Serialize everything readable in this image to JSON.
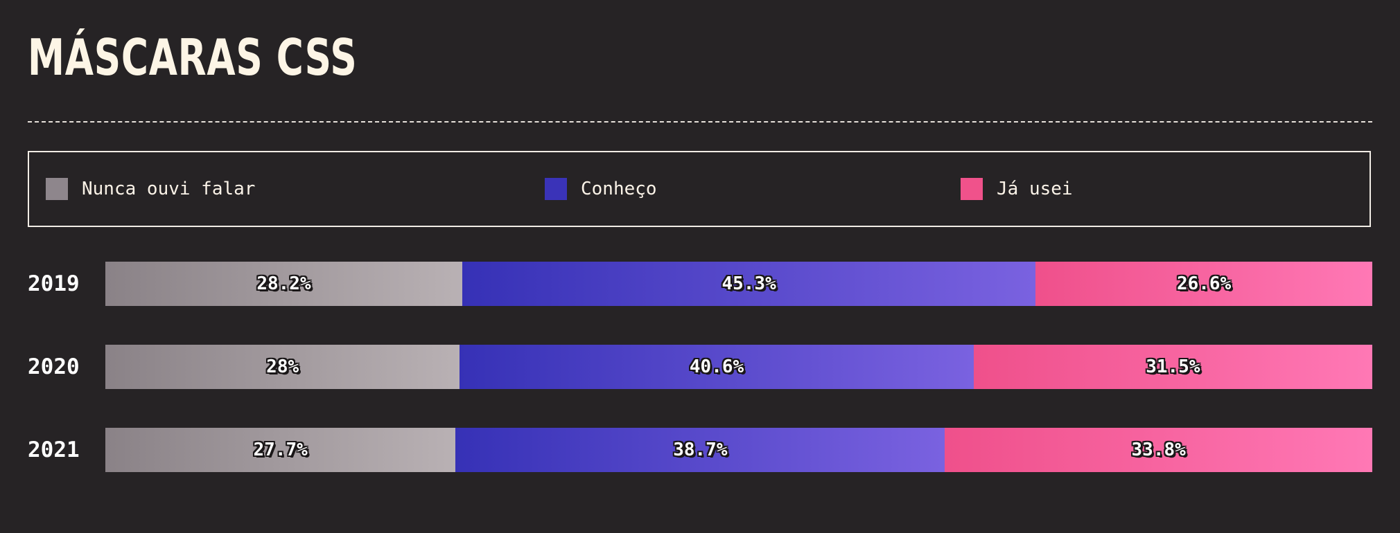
{
  "title": "MÁSCARAS CSS",
  "legend": [
    {
      "label": "Nunca ouvi falar",
      "color": "#8e868c"
    },
    {
      "label": "Conheço",
      "color": "#3a33b8"
    },
    {
      "label": "Já usei",
      "color": "#f0528b"
    }
  ],
  "gradients": {
    "nunca": [
      "#8a8287",
      "#b9b1b4"
    ],
    "conheco": [
      "#3631b6",
      "#7a62e0"
    ],
    "usei": [
      "#ef508b",
      "#ff78b5"
    ]
  },
  "chart_data": {
    "type": "bar",
    "orientation": "horizontal",
    "stacked": true,
    "normalized": true,
    "title": "MÁSCARAS CSS",
    "categories": [
      "2019",
      "2020",
      "2021"
    ],
    "series": [
      {
        "name": "Nunca ouvi falar",
        "values": [
          28.2,
          28,
          27.7
        ]
      },
      {
        "name": "Conheço",
        "values": [
          45.3,
          40.6,
          38.7
        ]
      },
      {
        "name": "Já usei",
        "values": [
          26.6,
          31.5,
          33.8
        ]
      }
    ],
    "value_labels": [
      [
        "28.2%",
        "45.3%",
        "26.6%"
      ],
      [
        "28%",
        "40.6%",
        "31.5%"
      ],
      [
        "27.7%",
        "38.7%",
        "33.8%"
      ]
    ],
    "legend_position": "top",
    "grid": false
  }
}
